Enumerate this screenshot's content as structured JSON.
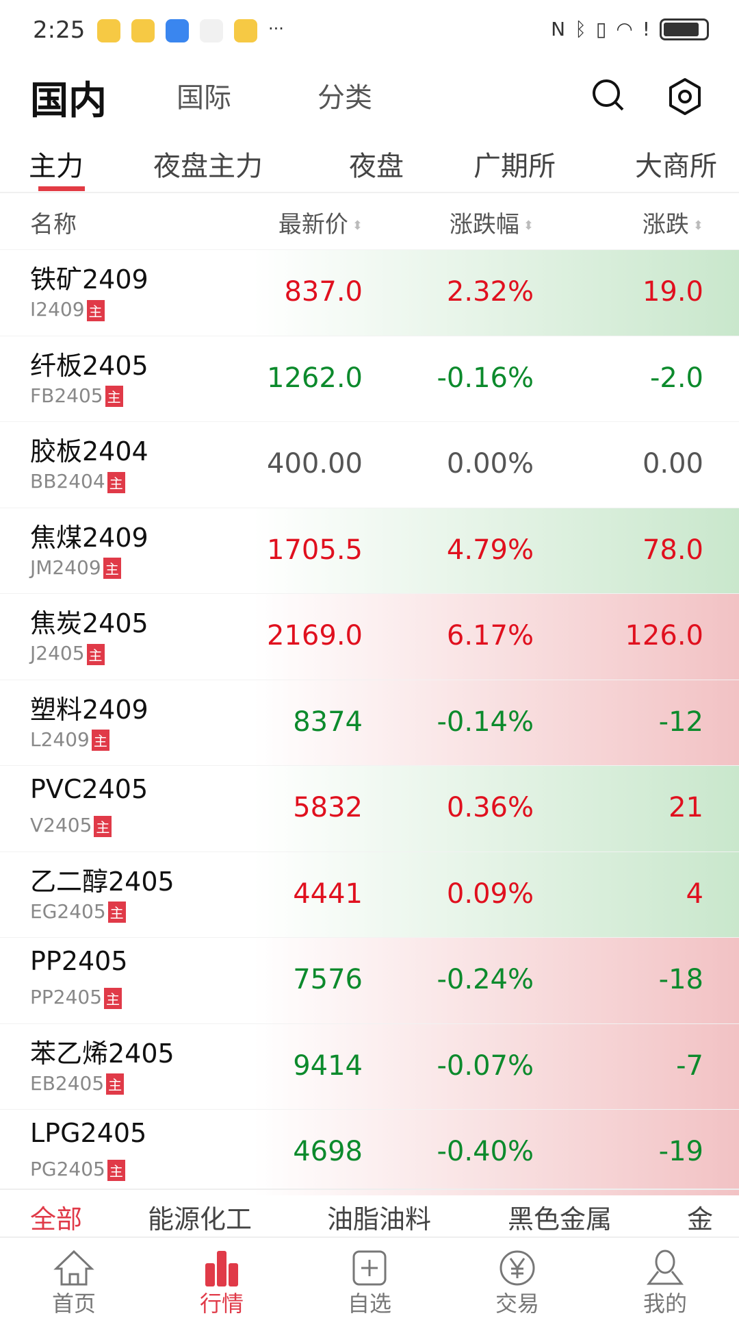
{
  "status": {
    "time": "2:25",
    "more": "···"
  },
  "topnav": {
    "tabs": [
      "国内",
      "国际",
      "分类"
    ],
    "active": 0
  },
  "subtabs": {
    "tabs": [
      "主力",
      "夜盘主力",
      "夜盘",
      "广期所",
      "大商所"
    ],
    "active": 0
  },
  "table": {
    "headers": [
      "名称",
      "最新价",
      "涨跌幅",
      "涨跌"
    ],
    "tag": "主",
    "rows": [
      {
        "name": "铁矿2409",
        "code": "I2409",
        "price": "837.0",
        "pct": "2.32%",
        "chg": "19.0",
        "dir": "up",
        "bg": "green"
      },
      {
        "name": "纤板2405",
        "code": "FB2405",
        "price": "1262.0",
        "pct": "-0.16%",
        "chg": "-2.0",
        "dir": "down",
        "bg": "none"
      },
      {
        "name": "胶板2404",
        "code": "BB2404",
        "price": "400.00",
        "pct": "0.00%",
        "chg": "0.00",
        "dir": "flat",
        "bg": "none"
      },
      {
        "name": "焦煤2409",
        "code": "JM2409",
        "price": "1705.5",
        "pct": "4.79%",
        "chg": "78.0",
        "dir": "up",
        "bg": "green"
      },
      {
        "name": "焦炭2405",
        "code": "J2405",
        "price": "2169.0",
        "pct": "6.17%",
        "chg": "126.0",
        "dir": "up",
        "bg": "red"
      },
      {
        "name": "塑料2409",
        "code": "L2409",
        "price": "8374",
        "pct": "-0.14%",
        "chg": "-12",
        "dir": "down",
        "bg": "red"
      },
      {
        "name": "PVC2405",
        "code": "V2405",
        "price": "5832",
        "pct": "0.36%",
        "chg": "21",
        "dir": "up",
        "bg": "green"
      },
      {
        "name": "乙二醇2405",
        "code": "EG2405",
        "price": "4441",
        "pct": "0.09%",
        "chg": "4",
        "dir": "up",
        "bg": "green"
      },
      {
        "name": "PP2405",
        "code": "PP2405",
        "price": "7576",
        "pct": "-0.24%",
        "chg": "-18",
        "dir": "down",
        "bg": "red"
      },
      {
        "name": "苯乙烯2405",
        "code": "EB2405",
        "price": "9414",
        "pct": "-0.07%",
        "chg": "-7",
        "dir": "down",
        "bg": "red"
      },
      {
        "name": "LPG2405",
        "code": "PG2405",
        "price": "4698",
        "pct": "-0.40%",
        "chg": "-19",
        "dir": "down",
        "bg": "red"
      }
    ]
  },
  "categories": {
    "items": [
      "全部",
      "能源化工",
      "油脂油料",
      "黑色金属",
      "金"
    ],
    "active": 0
  },
  "bottom_nav": {
    "items": [
      {
        "label": "首页",
        "icon": "home-icon"
      },
      {
        "label": "行情",
        "icon": "chart-bars-icon"
      },
      {
        "label": "自选",
        "icon": "add-square-icon"
      },
      {
        "label": "交易",
        "icon": "yen-circle-icon"
      },
      {
        "label": "我的",
        "icon": "user-icon"
      }
    ],
    "active": 1
  },
  "colors": {
    "up": "#e0101e",
    "down": "#0c8a2c",
    "accent": "#e03a48"
  }
}
